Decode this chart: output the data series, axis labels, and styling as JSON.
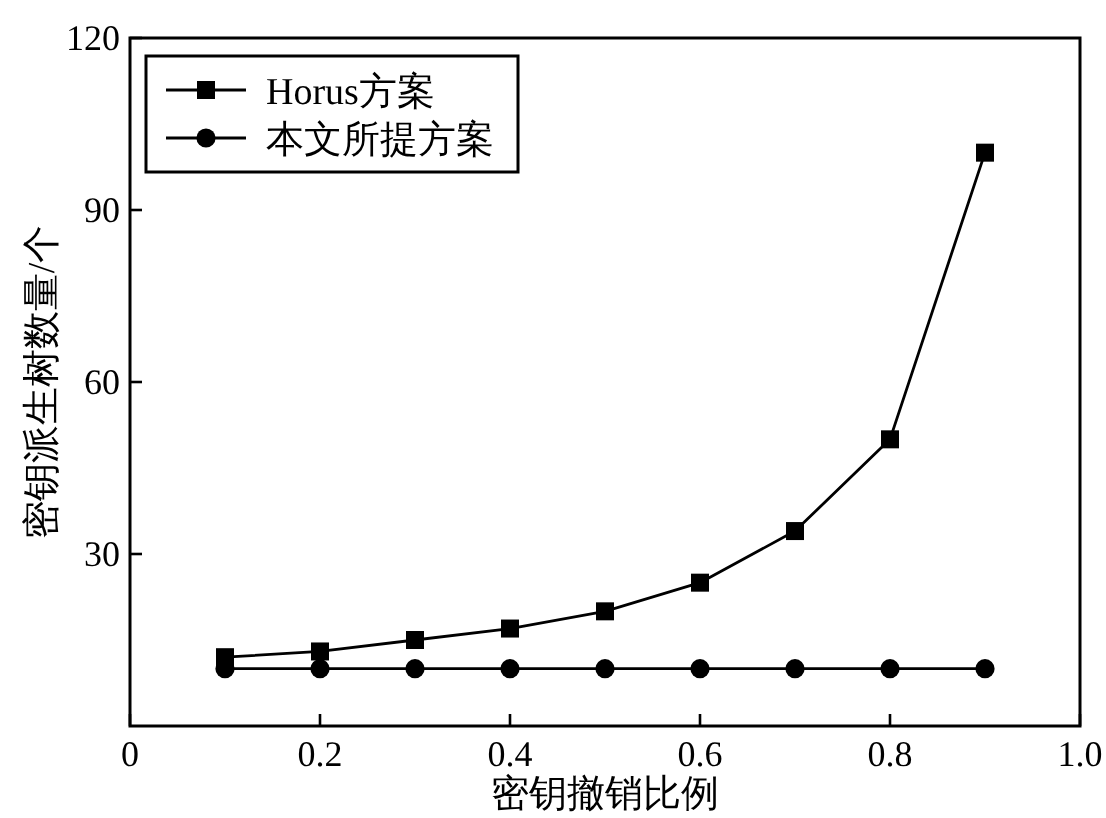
{
  "chart_data": {
    "type": "line",
    "xlabel": "密钥撤销比例",
    "ylabel": "密钥派生树数量/个",
    "x": [
      0.1,
      0.2,
      0.3,
      0.4,
      0.5,
      0.6,
      0.7,
      0.8,
      0.9
    ],
    "series": [
      {
        "name": "Horus方案",
        "color": "#000000",
        "marker": "square",
        "values": [
          12,
          13,
          15,
          17,
          20,
          25,
          34,
          50,
          100
        ]
      },
      {
        "name": "本文所提方案",
        "color": "#000000",
        "marker": "circle",
        "values": [
          10,
          10,
          10,
          10,
          10,
          10,
          10,
          10,
          10
        ]
      }
    ],
    "xlim": [
      0,
      1
    ],
    "ylim": [
      0,
      120
    ],
    "xticks": [
      0,
      0.2,
      0.4,
      0.6,
      0.8,
      {
        "value": 1,
        "label": "1.0"
      }
    ],
    "yticks": [
      30,
      60,
      90,
      120
    ],
    "legend": "top left",
    "line_style": "solid"
  }
}
